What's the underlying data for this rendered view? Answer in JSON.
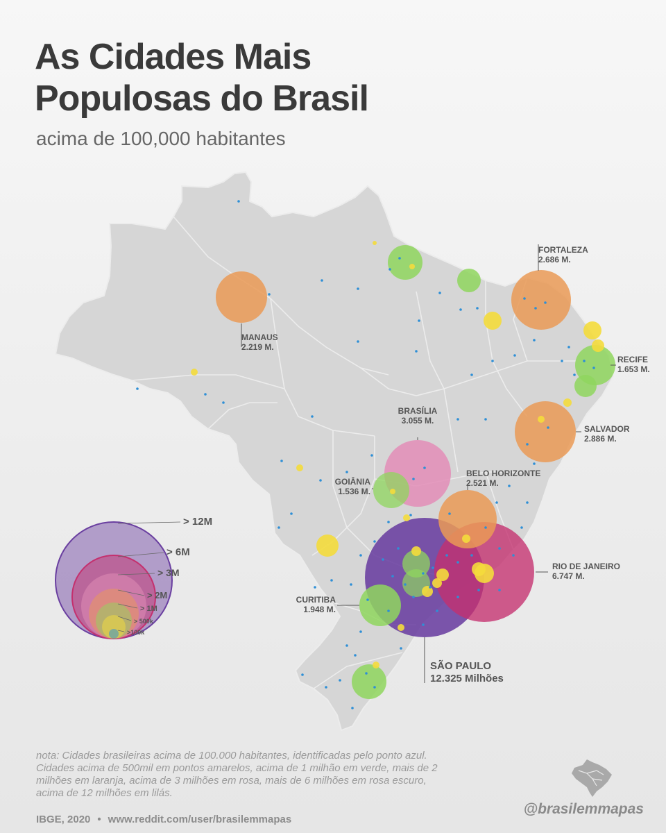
{
  "title_line1": "As Cidades Mais",
  "title_line2": "Populosas do Brasil",
  "subtitle": "acima de 100,000 habitantes",
  "colors": {
    "over_12m": "#6a3fa0",
    "over_6m": "#c4306e",
    "over_3m": "#e28fb8",
    "over_2m": "#ea9a56",
    "over_1m": "#8fd65e",
    "over_500k": "#f4dc3c",
    "over_100k": "#2e8fd6"
  },
  "cities": [
    {
      "id": "sao-paulo",
      "name": "SÃO PAULO",
      "value": "12.325 Milhões",
      "category": "over_12m"
    },
    {
      "id": "rio-de-janeiro",
      "name": "RIO DE JANEIRO",
      "value": "6.747 M.",
      "category": "over_6m"
    },
    {
      "id": "brasilia",
      "name": "BRASÍLIA",
      "value": "3.055 M.",
      "category": "over_3m"
    },
    {
      "id": "salvador",
      "name": "SALVADOR",
      "value": "2.886 M.",
      "category": "over_2m"
    },
    {
      "id": "fortaleza",
      "name": "FORTALEZA",
      "value": "2.686 M.",
      "category": "over_2m"
    },
    {
      "id": "belo-horizonte",
      "name": "BELO HORIZONTE",
      "value": "2.521 M.",
      "category": "over_2m"
    },
    {
      "id": "manaus",
      "name": "MANAUS",
      "value": "2.219 M.",
      "category": "over_2m"
    },
    {
      "id": "curitiba",
      "name": "CURITIBA",
      "value": "1.948 M.",
      "category": "over_1m"
    },
    {
      "id": "recife",
      "name": "RECIFE",
      "value": "1.653 M.",
      "category": "over_1m"
    },
    {
      "id": "goiania",
      "name": "GOIÂNIA",
      "value": "1.536 M.",
      "category": "over_1m"
    }
  ],
  "legend": [
    {
      "label": "> 12M",
      "category": "over_12m"
    },
    {
      "label": "> 6M",
      "category": "over_6m"
    },
    {
      "label": "> 3M",
      "category": "over_3m"
    },
    {
      "label": "> 2M",
      "category": "over_2m"
    },
    {
      "label": "> 1M",
      "category": "over_1m"
    },
    {
      "label": "> 500k",
      "category": "over_500k"
    },
    {
      "label": ">100k",
      "category": "over_100k"
    }
  ],
  "note": "nota: Cidades brasileiras acima de 100.000 habitantes, identificadas pelo ponto azul. Cidades acima de 500mil em pontos amarelos, acima de 1 milhão em verde, mais de 2 milhões em laranja, acima de 3 milhões em rosa, mais de 6 milhões em rosa escuro, acima de 12 milhões em lilás.",
  "source": "IBGE, 2020",
  "source_url": "www.reddit.com/user/brasilemmapas",
  "handle": "@brasilemmapas"
}
